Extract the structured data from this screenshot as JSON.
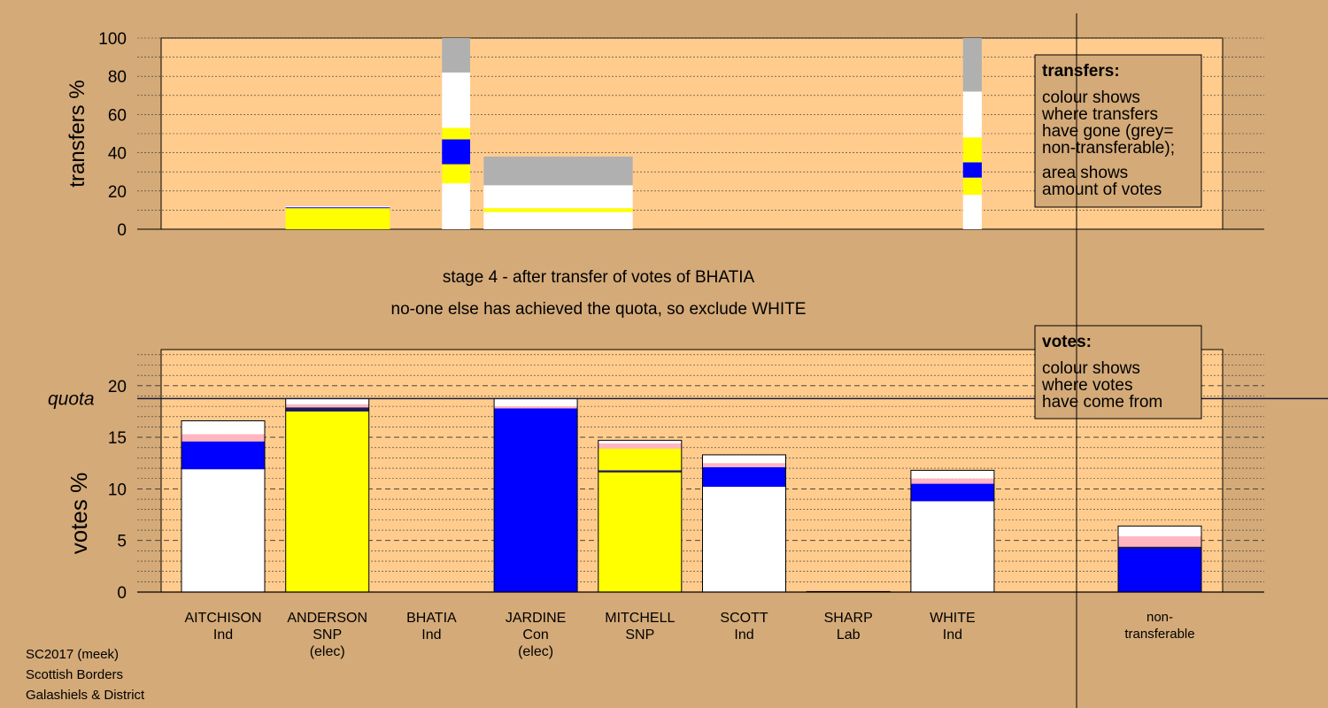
{
  "chart_data": {
    "type": "bar",
    "stage_line1": "stage 4 - after transfer of votes of BHATIA",
    "stage_line2": "no-one else has achieved the quota, so exclude WHITE",
    "footer": [
      "SC2017 (meek)",
      "Scottish Borders",
      "Galashiels & District"
    ],
    "colors": {
      "Ind": "#ffffff",
      "SNP": "#ffff00",
      "Con": "#0000ff",
      "Lab": "#ffb6c1",
      "NT": "#b0b0b0",
      "SNPdark": "#1a1a60",
      "plot_bg": "#ffcc8e",
      "page_bg": "#d4aa78"
    },
    "candidates": [
      {
        "id": "aitchison",
        "name": "AITCHISON",
        "party": "Ind",
        "note": ""
      },
      {
        "id": "anderson",
        "name": "ANDERSON",
        "party": "SNP",
        "note": "(elec)"
      },
      {
        "id": "bhatia",
        "name": "BHATIA",
        "party": "Ind",
        "note": ""
      },
      {
        "id": "jardine",
        "name": "JARDINE",
        "party": "Con",
        "note": "(elec)"
      },
      {
        "id": "mitchell",
        "name": "MITCHELL",
        "party": "SNP",
        "note": ""
      },
      {
        "id": "scott",
        "name": "SCOTT",
        "party": "Ind",
        "note": ""
      },
      {
        "id": "sharp",
        "name": "SHARP",
        "party": "Lab",
        "note": ""
      },
      {
        "id": "white",
        "name": "WHITE",
        "party": "Ind",
        "note": ""
      }
    ],
    "nontransferable": {
      "label_line1": "non-",
      "label_line2": "transferable"
    },
    "transfers": {
      "ylabel": "transfers %",
      "ylim": [
        0,
        100
      ],
      "ticks": [
        0,
        20,
        40,
        60,
        80,
        100
      ],
      "legend": {
        "title": "transfers:",
        "lines": [
          "colour shows",
          "where transfers",
          "have gone (grey=",
          "non-transferable);",
          "area shows",
          "amount of votes"
        ]
      },
      "bars": [
        {
          "x0": 1.0,
          "x1": 2.0,
          "segments": [
            {
              "color": "SNP",
              "from": 0,
              "to": 11
            },
            {
              "color": "Con",
              "from": 11,
              "to": 11.5
            },
            {
              "color": "Ind",
              "from": 11.5,
              "to": 12
            }
          ]
        },
        {
          "x0": 2.5,
          "x1": 2.77,
          "segments": [
            {
              "color": "Ind",
              "from": 0,
              "to": 24
            },
            {
              "color": "SNP",
              "from": 24,
              "to": 34
            },
            {
              "color": "Con",
              "from": 34,
              "to": 47
            },
            {
              "color": "SNP",
              "from": 47,
              "to": 53
            },
            {
              "color": "Ind",
              "from": 53,
              "to": 82
            },
            {
              "color": "NT",
              "from": 82,
              "to": 100
            }
          ]
        },
        {
          "x0": 2.9,
          "x1": 4.33,
          "segments": [
            {
              "color": "Ind",
              "from": 0,
              "to": 9
            },
            {
              "color": "SNP",
              "from": 9,
              "to": 11
            },
            {
              "color": "Ind",
              "from": 11,
              "to": 23
            },
            {
              "color": "NT",
              "from": 23,
              "to": 38
            }
          ]
        },
        {
          "x0": 7.5,
          "x1": 7.68,
          "segments": [
            {
              "color": "Ind",
              "from": 0,
              "to": 18
            },
            {
              "color": "SNP",
              "from": 18,
              "to": 27
            },
            {
              "color": "Con",
              "from": 27,
              "to": 35
            },
            {
              "color": "SNP",
              "from": 35,
              "to": 48
            },
            {
              "color": "Ind",
              "from": 48,
              "to": 72
            },
            {
              "color": "NT",
              "from": 72,
              "to": 100
            }
          ]
        }
      ]
    },
    "votes": {
      "ylabel": "votes %",
      "ylim": [
        0,
        23.5
      ],
      "ticks": [
        0,
        5,
        10,
        15,
        20
      ],
      "quota": 18.75,
      "quota_label": "quota",
      "legend": {
        "title": "votes:",
        "lines": [
          "colour shows",
          "where votes",
          "have come from"
        ]
      },
      "bars": [
        {
          "id": "aitchison",
          "segments": [
            {
              "color": "Ind",
              "from": 0,
              "to": 11.9
            },
            {
              "color": "Con",
              "from": 11.9,
              "to": 14.6
            },
            {
              "color": "Lab",
              "from": 14.6,
              "to": 15.3
            },
            {
              "color": "Ind",
              "from": 15.3,
              "to": 16.6
            }
          ]
        },
        {
          "id": "anderson",
          "segments": [
            {
              "color": "SNP",
              "from": 0,
              "to": 17.5
            },
            {
              "color": "SNPdark",
              "from": 17.5,
              "to": 17.9
            },
            {
              "color": "Lab",
              "from": 17.9,
              "to": 18.2
            },
            {
              "color": "Ind",
              "from": 18.2,
              "to": 18.75
            }
          ]
        },
        {
          "id": "bhatia",
          "segments": []
        },
        {
          "id": "jardine",
          "segments": [
            {
              "color": "Con",
              "from": 0,
              "to": 17.8
            },
            {
              "color": "Lab",
              "from": 17.8,
              "to": 18.0
            },
            {
              "color": "Ind",
              "from": 18.0,
              "to": 18.75
            }
          ]
        },
        {
          "id": "mitchell",
          "segments": [
            {
              "color": "SNP",
              "from": 0,
              "to": 11.6
            },
            {
              "color": "SNPdark",
              "from": 11.6,
              "to": 11.8
            },
            {
              "color": "SNP",
              "from": 11.8,
              "to": 13.9
            },
            {
              "color": "Lab",
              "from": 13.9,
              "to": 14.4
            },
            {
              "color": "Ind",
              "from": 14.4,
              "to": 14.7
            }
          ]
        },
        {
          "id": "scott",
          "segments": [
            {
              "color": "Ind",
              "from": 0,
              "to": 10.2
            },
            {
              "color": "Con",
              "from": 10.2,
              "to": 12.1
            },
            {
              "color": "Lab",
              "from": 12.1,
              "to": 12.5
            },
            {
              "color": "Ind",
              "from": 12.5,
              "to": 13.3
            }
          ]
        },
        {
          "id": "sharp",
          "segments": [
            {
              "color": "Lab",
              "from": 0,
              "to": 0.05
            }
          ]
        },
        {
          "id": "white",
          "segments": [
            {
              "color": "Ind",
              "from": 0,
              "to": 8.8
            },
            {
              "color": "Con",
              "from": 8.8,
              "to": 10.5
            },
            {
              "color": "Lab",
              "from": 10.5,
              "to": 11.0
            },
            {
              "color": "Ind",
              "from": 11.0,
              "to": 11.8
            }
          ]
        },
        {
          "id": "nontransferable",
          "segments": [
            {
              "color": "Con",
              "from": 0,
              "to": 4.2
            },
            {
              "color": "SNPdark",
              "from": 4.2,
              "to": 4.4
            },
            {
              "color": "Lab",
              "from": 4.4,
              "to": 5.4
            },
            {
              "color": "Ind",
              "from": 5.4,
              "to": 6.4
            }
          ]
        }
      ]
    }
  }
}
